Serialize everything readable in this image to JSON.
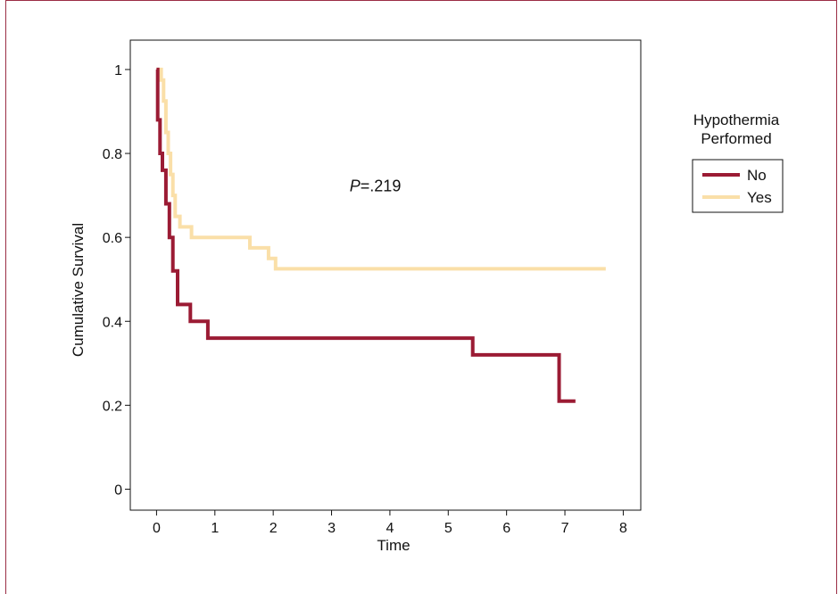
{
  "chart_data": {
    "type": "line",
    "title": "",
    "xlabel": "Time",
    "ylabel": "Cumulative Survival",
    "xlim": [
      -0.45,
      8.3
    ],
    "ylim": [
      -0.05,
      1.07
    ],
    "x_ticks": [
      "0",
      "1",
      "2",
      "3",
      "4",
      "5",
      "6",
      "7",
      "8"
    ],
    "y_ticks": [
      "0",
      "0.2",
      "0.4",
      "0.6",
      "0.8",
      "1"
    ],
    "step": true,
    "grid": false,
    "annotation": {
      "prefix": "P",
      "value": "=.219",
      "x": 3.75,
      "y": 0.71
    },
    "legend": {
      "title_line1": "Hypothermia",
      "title_line2": "Performed",
      "placement": "right"
    },
    "series": [
      {
        "name": "No",
        "color": "#9b1b34",
        "x": [
          0,
          0.02,
          0.06,
          0.1,
          0.16,
          0.22,
          0.28,
          0.36,
          0.58,
          0.88,
          5.42,
          6.9,
          7.18
        ],
        "y": [
          1,
          0.88,
          0.8,
          0.76,
          0.68,
          0.6,
          0.52,
          0.44,
          0.4,
          0.36,
          0.32,
          0.21,
          0.21
        ]
      },
      {
        "name": "Yes",
        "color": "#fadfa8",
        "x": [
          0,
          0.08,
          0.12,
          0.16,
          0.2,
          0.24,
          0.28,
          0.32,
          0.4,
          0.6,
          1.6,
          1.92,
          2.04,
          7.7
        ],
        "y": [
          1,
          0.975,
          0.925,
          0.85,
          0.8,
          0.75,
          0.7,
          0.65,
          0.625,
          0.6,
          0.575,
          0.55,
          0.525,
          0.525
        ]
      }
    ]
  }
}
